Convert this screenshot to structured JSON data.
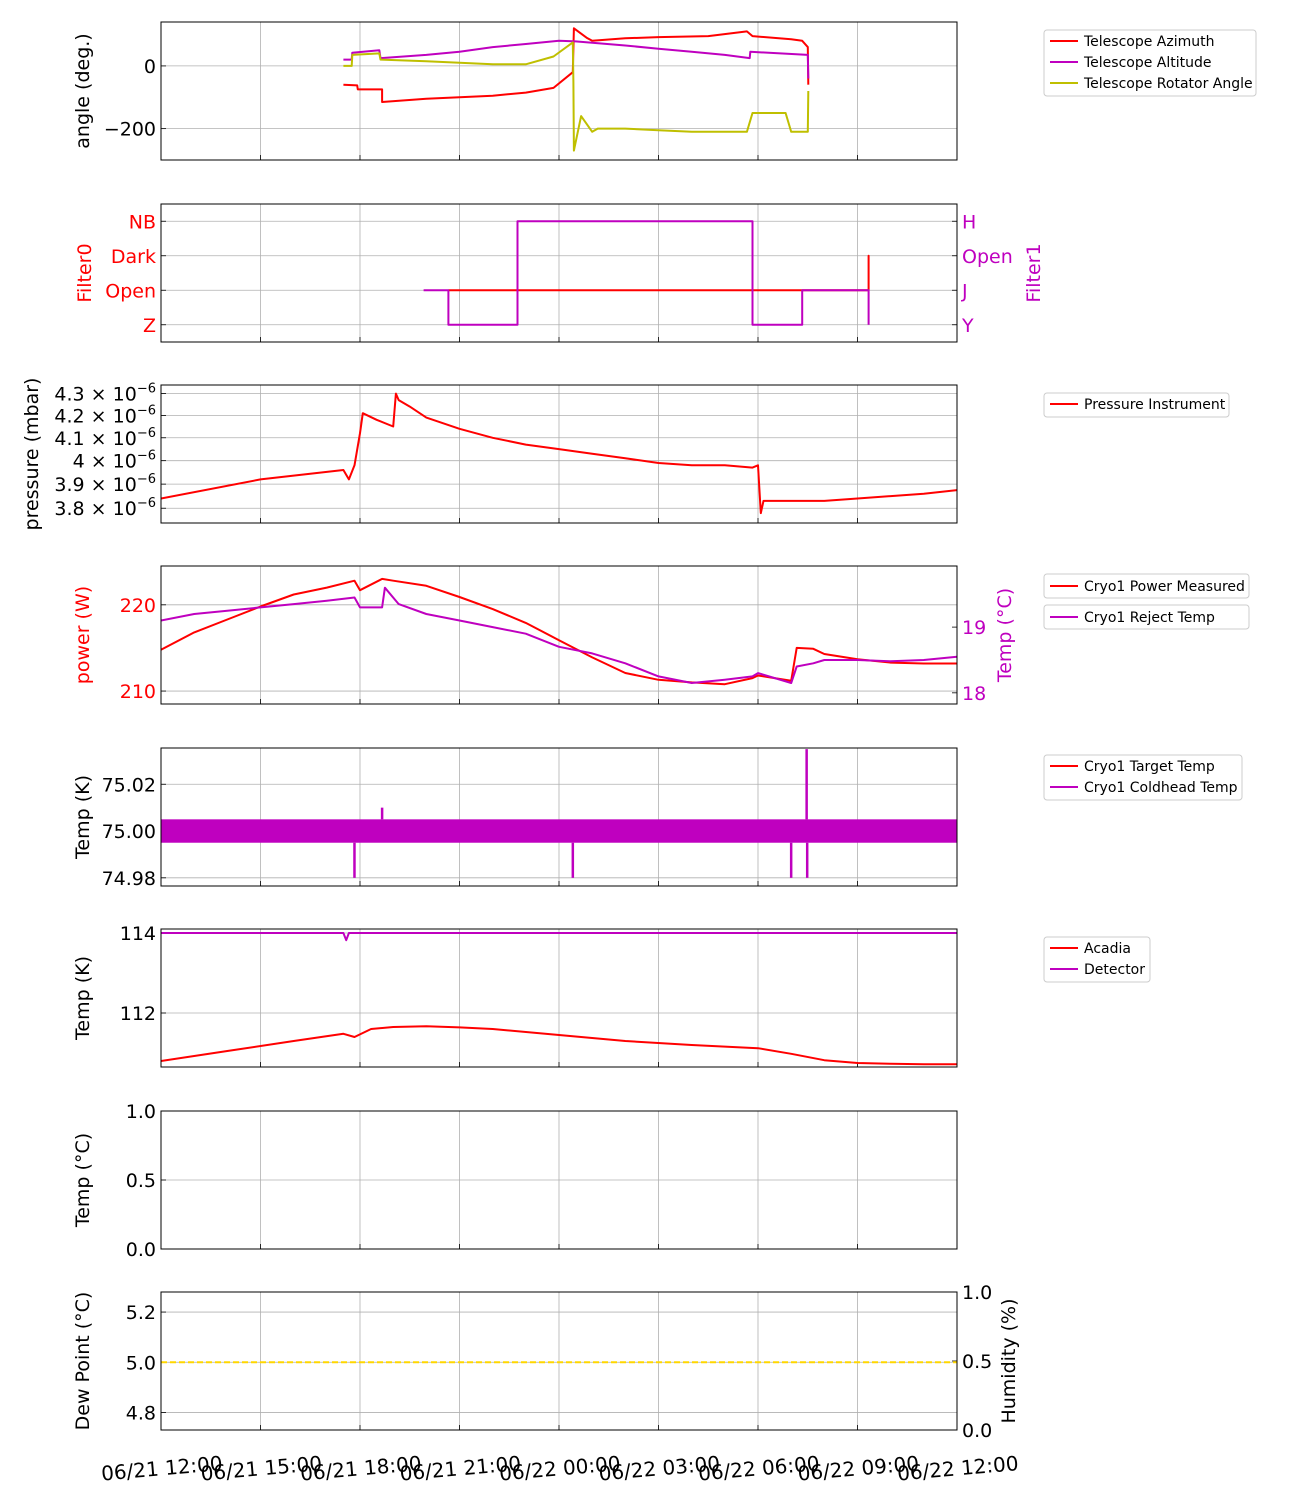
{
  "colors": {
    "red": "#ff0000",
    "magenta": "#bf00bf",
    "olive": "#bfbf00",
    "gold": "#ffd700",
    "grid": "#b0b0b0"
  },
  "shared_x": {
    "ticks": [
      "06/21 12:00",
      "06/21 15:00",
      "06/21 18:00",
      "06/21 21:00",
      "06/22 00:00",
      "06/22 03:00",
      "06/22 06:00",
      "06/22 09:00",
      "06/22 12:00"
    ],
    "xlim": [
      "06/21 12:00",
      "06/22 12:00"
    ]
  },
  "chart_data": [
    {
      "type": "line",
      "ylabel": "angle (deg.)",
      "ylim": [
        -300,
        140
      ],
      "yticks": [
        {
          "v": 0,
          "t": "0"
        },
        {
          "v": -200,
          "t": "−200"
        }
      ],
      "legend": "right",
      "series": [
        {
          "name": "Telescope Azimuth",
          "color": "red",
          "x": [
            "06/21 17:30",
            "06/21 17:55",
            "06/21 17:56",
            "06/21 18:40",
            "06/21 18:40",
            "06/21 20:00",
            "06/21 21:00",
            "06/21 22:00",
            "06/21 23:00",
            "06/21 23:50",
            "06/22 00:25",
            "06/22 00:27",
            "06/22 00:50",
            "06/22 01:00",
            "06/22 02:00",
            "06/22 03:00",
            "06/22 04:30",
            "06/22 05:40",
            "06/22 05:50",
            "06/22 07:00",
            "06/22 07:20",
            "06/22 07:30",
            "06/22 07:31"
          ],
          "y": [
            -60,
            -62,
            -75,
            -75,
            -115,
            -105,
            -100,
            -95,
            -85,
            -70,
            -20,
            120,
            90,
            80,
            88,
            92,
            95,
            110,
            95,
            85,
            80,
            60,
            -60
          ]
        },
        {
          "name": "Telescope Altitude",
          "color": "magenta",
          "x": [
            "06/21 17:30",
            "06/21 17:45",
            "06/21 17:46",
            "06/21 18:35",
            "06/21 18:37",
            "06/21 20:00",
            "06/21 21:00",
            "06/21 22:00",
            "06/21 23:00",
            "06/22 00:00",
            "06/22 00:30",
            "06/22 02:00",
            "06/22 03:00",
            "06/22 04:00",
            "06/22 05:00",
            "06/22 05:45",
            "06/22 05:46",
            "06/22 07:30",
            "06/22 07:31"
          ],
          "y": [
            20,
            20,
            42,
            50,
            25,
            35,
            45,
            60,
            70,
            80,
            78,
            65,
            55,
            45,
            35,
            25,
            45,
            35,
            -40
          ]
        },
        {
          "name": "Telescope Rotator Angle",
          "color": "olive",
          "x": [
            "06/21 17:30",
            "06/21 17:45",
            "06/21 17:46",
            "06/21 18:35",
            "06/21 18:37",
            "06/21 20:00",
            "06/21 21:00",
            "06/21 22:00",
            "06/21 23:00",
            "06/21 23:50",
            "06/22 00:25",
            "06/22 00:26",
            "06/22 00:27",
            "06/22 00:40",
            "06/22 01:00",
            "06/22 01:10",
            "06/22 02:00",
            "06/22 03:00",
            "06/22 04:00",
            "06/22 05:40",
            "06/22 05:50",
            "06/22 06:50",
            "06/22 07:00",
            "06/22 07:30",
            "06/22 07:31"
          ],
          "y": [
            0,
            0,
            35,
            40,
            20,
            15,
            10,
            5,
            5,
            30,
            75,
            -50,
            -270,
            -160,
            -210,
            -200,
            -200,
            -205,
            -210,
            -210,
            -150,
            -150,
            -210,
            -210,
            -80
          ]
        }
      ]
    },
    {
      "type": "line",
      "ylabel": "Filter0",
      "ylabel_right": "Filter1",
      "ylim": [
        -0.5,
        3.5
      ],
      "yticks_left": [
        "Z",
        "Open",
        "Dark",
        "NB"
      ],
      "yticks_right": [
        "Y",
        "J",
        "Open",
        "H"
      ],
      "series": [
        {
          "name": "Filter0",
          "color": "red",
          "axis": "left",
          "x": [
            "06/21 20:40",
            "06/22 09:20",
            "06/22 09:20",
            "06/22 09:20"
          ],
          "y": [
            1,
            1,
            2,
            1
          ]
        },
        {
          "name": "Filter1",
          "color": "magenta",
          "axis": "right",
          "x": [
            "06/21 19:55",
            "06/21 20:40",
            "06/21 20:40",
            "06/21 22:45",
            "06/21 22:45",
            "06/22 05:50",
            "06/22 05:50",
            "06/22 07:20",
            "06/22 07:20",
            "06/22 09:20",
            "06/22 09:20"
          ],
          "y": [
            1,
            1,
            0,
            0,
            3,
            3,
            0,
            0,
            1,
            1,
            0
          ]
        }
      ]
    },
    {
      "type": "line",
      "ylabel": "pressure (mbar)",
      "yscale": "log",
      "ylim": [
        3.74e-06,
        4.34e-06
      ],
      "yticks": [
        3.8e-06,
        3.9e-06,
        4e-06,
        4.1e-06,
        4.2e-06,
        4.3e-06
      ],
      "ytick_labels": [
        "3.8 × 10",
        "3.9 × 10",
        "4 × 10",
        "4.1 × 10",
        "4.2 × 10",
        "4.3 × 10"
      ],
      "ytick_exponent": "−6",
      "legend": "right",
      "series": [
        {
          "name": "Pressure Instrument",
          "color": "red",
          "x": [
            "06/21 12:00",
            "06/21 15:00",
            "06/21 17:30",
            "06/21 17:40",
            "06/21 17:50",
            "06/21 18:00",
            "06/21 18:05",
            "06/21 18:30",
            "06/21 19:00",
            "06/21 19:05",
            "06/21 19:10",
            "06/21 19:30",
            "06/21 20:00",
            "06/21 21:00",
            "06/21 22:00",
            "06/21 23:00",
            "06/22 00:00",
            "06/22 01:00",
            "06/22 02:00",
            "06/22 03:00",
            "06/22 04:00",
            "06/22 05:00",
            "06/22 05:50",
            "06/22 06:00",
            "06/22 06:05",
            "06/22 06:10",
            "06/22 07:00",
            "06/22 08:00",
            "06/22 09:00",
            "06/22 10:00",
            "06/22 11:00",
            "06/22 12:00"
          ],
          "y": [
            3.84e-06,
            3.92e-06,
            3.96e-06,
            3.92e-06,
            3.98e-06,
            4.12e-06,
            4.21e-06,
            4.18e-06,
            4.15e-06,
            4.3e-06,
            4.27e-06,
            4.24e-06,
            4.19e-06,
            4.14e-06,
            4.1e-06,
            4.07e-06,
            4.05e-06,
            4.03e-06,
            4.01e-06,
            3.99e-06,
            3.98e-06,
            3.98e-06,
            3.97e-06,
            3.98e-06,
            3.78e-06,
            3.83e-06,
            3.83e-06,
            3.83e-06,
            3.84e-06,
            3.85e-06,
            3.86e-06,
            3.875e-06
          ]
        }
      ]
    },
    {
      "type": "line",
      "ylabel": "power (W)",
      "ylabel_right": "Temp (°C)",
      "ylim": [
        208.5,
        224.5
      ],
      "ylim_right": [
        17.83,
        19.93
      ],
      "yticks": [
        210,
        220
      ],
      "yticks_right": [
        18,
        19
      ],
      "legend": "right",
      "series": [
        {
          "name": "Cryo1 Power Measured",
          "color": "red",
          "axis": "left",
          "x": [
            "06/21 12:00",
            "06/21 13:00",
            "06/21 14:00",
            "06/21 15:00",
            "06/21 16:00",
            "06/21 17:00",
            "06/21 17:50",
            "06/21 18:00",
            "06/21 18:40",
            "06/21 19:00",
            "06/21 20:00",
            "06/21 21:00",
            "06/21 22:00",
            "06/21 23:00",
            "06/22 00:00",
            "06/22 01:00",
            "06/22 02:00",
            "06/22 03:00",
            "06/22 04:00",
            "06/22 05:00",
            "06/22 05:50",
            "06/22 06:00",
            "06/22 07:00",
            "06/22 07:10",
            "06/22 07:40",
            "06/22 08:00",
            "06/22 09:00",
            "06/22 10:00",
            "06/22 11:00",
            "06/22 12:00"
          ],
          "y": [
            214.8,
            216.8,
            218.3,
            219.8,
            221.2,
            222,
            222.8,
            221.7,
            223,
            222.8,
            222.2,
            220.9,
            219.5,
            217.9,
            215.9,
            213.9,
            212.1,
            211.3,
            211,
            210.8,
            211.5,
            211.8,
            211.2,
            215,
            214.9,
            214.3,
            213.7,
            213.3,
            213.2,
            213.2
          ]
        },
        {
          "name": "Cryo1 Reject Temp",
          "color": "magenta",
          "axis": "right",
          "x": [
            "06/21 12:00",
            "06/21 13:00",
            "06/21 14:00",
            "06/21 15:00",
            "06/21 16:00",
            "06/21 17:00",
            "06/21 17:50",
            "06/21 18:00",
            "06/21 18:40",
            "06/21 18:45",
            "06/21 19:10",
            "06/21 20:00",
            "06/21 21:00",
            "06/21 22:00",
            "06/21 23:00",
            "06/22 00:00",
            "06/22 01:00",
            "06/22 02:00",
            "06/22 03:00",
            "06/22 04:00",
            "06/22 05:00",
            "06/22 05:50",
            "06/22 06:00",
            "06/22 07:00",
            "06/22 07:10",
            "06/22 07:40",
            "06/22 08:00",
            "06/22 09:00",
            "06/22 10:00",
            "06/22 11:00",
            "06/22 12:00"
          ],
          "y": [
            19.1,
            19.2,
            19.25,
            19.3,
            19.35,
            19.4,
            19.45,
            19.3,
            19.3,
            19.6,
            19.35,
            19.2,
            19.1,
            19.0,
            18.9,
            18.7,
            18.6,
            18.45,
            18.25,
            18.15,
            18.2,
            18.25,
            18.3,
            18.15,
            18.4,
            18.45,
            18.5,
            18.5,
            18.48,
            18.5,
            18.55
          ]
        }
      ]
    },
    {
      "type": "line",
      "ylabel": "Temp (K)",
      "ylim": [
        74.9765,
        75.0355
      ],
      "yticks": [
        74.98,
        75.0,
        75.02
      ],
      "ytick_labels": [
        "74.98",
        "75.00",
        "75.02"
      ],
      "legend": "right",
      "series": [
        {
          "name": "Cryo1 Target Temp",
          "color": "red",
          "x": [],
          "y": []
        },
        {
          "name": "Cryo1 Coldhead Temp",
          "color": "magenta",
          "band": [
            74.995,
            75.005
          ],
          "spikes": [
            [
              "06/21 17:50",
              74.98
            ],
            [
              "06/21 18:40",
              75.01
            ],
            [
              "06/22 00:25",
              74.98
            ],
            [
              "06/22 07:00",
              74.98
            ],
            [
              "06/22 07:28",
              75.035
            ],
            [
              "06/22 07:29",
              74.98
            ]
          ]
        }
      ]
    },
    {
      "type": "line",
      "ylabel": "Temp (K)",
      "ylim": [
        110.65,
        114.1
      ],
      "yticks": [
        112,
        114
      ],
      "legend": "right",
      "series": [
        {
          "name": "Acadia",
          "color": "red",
          "x": [
            "06/21 12:00",
            "06/21 14:00",
            "06/21 16:00",
            "06/21 17:30",
            "06/21 17:50",
            "06/21 18:20",
            "06/21 19:00",
            "06/21 20:00",
            "06/21 21:00",
            "06/21 22:00",
            "06/22 00:00",
            "06/22 02:00",
            "06/22 04:00",
            "06/22 06:00",
            "06/22 07:00",
            "06/22 08:00",
            "06/22 09:00",
            "06/22 10:00",
            "06/22 11:00",
            "06/22 12:00"
          ],
          "y": [
            110.8,
            111.05,
            111.3,
            111.48,
            111.4,
            111.6,
            111.65,
            111.67,
            111.64,
            111.6,
            111.45,
            111.3,
            111.2,
            111.12,
            110.98,
            110.82,
            110.75,
            110.73,
            110.72,
            110.72
          ]
        },
        {
          "name": "Detector",
          "color": "magenta",
          "x": [
            "06/21 12:00",
            "06/21 17:30",
            "06/21 17:35",
            "06/21 17:40",
            "06/22 12:00"
          ],
          "y": [
            114,
            114,
            113.82,
            114,
            114
          ]
        }
      ]
    },
    {
      "type": "line",
      "ylabel": "Temp (°C)",
      "ylim": [
        0,
        1
      ],
      "yticks": [
        0.0,
        0.5,
        1.0
      ],
      "ytick_labels": [
        "0.0",
        "0.5",
        "1.0"
      ],
      "series": []
    },
    {
      "type": "line",
      "ylabel": "Dew Point (°C)",
      "ylabel_right": "Humidity (%)",
      "ylim": [
        4.73,
        5.28
      ],
      "yticks": [
        4.8,
        5.0,
        5.2
      ],
      "ytick_labels": [
        "4.8",
        "5.0",
        "5.2"
      ],
      "ylim_right": [
        0,
        1
      ],
      "yticks_right": [
        0.0,
        0.5,
        1.0
      ],
      "ytick_labels_right": [
        "0.0",
        "0.5",
        "1.0"
      ],
      "series": [
        {
          "name": "",
          "color": "gold",
          "style": "dashed",
          "x": [
            "06/21 12:00",
            "06/22 12:00"
          ],
          "y": [
            5.0,
            5.0
          ]
        }
      ]
    }
  ]
}
